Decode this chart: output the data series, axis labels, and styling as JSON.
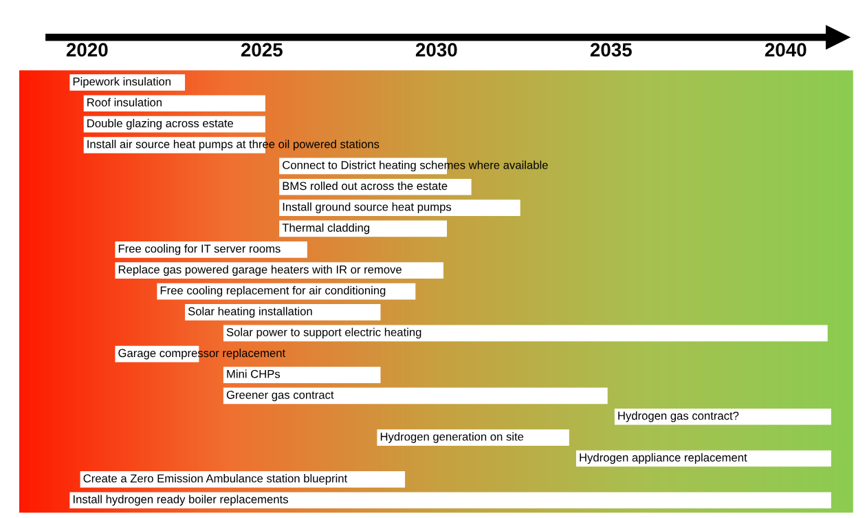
{
  "chart_data": {
    "type": "bar",
    "orientation": "horizontal",
    "color": "#ffffff",
    "tick_labels": "x",
    "grid": false,
    "xlim": [
      2018.05,
      2041.93
    ],
    "xticks": [
      2020,
      2025,
      2030,
      2035,
      2040
    ],
    "categories": [
      "Pipework insulation",
      "Roof insulation",
      "Double glazing across estate",
      "Install air source heat pumps at three oil powered stations",
      "Connect to District heating schemes where available",
      "BMS rolled out across the estate",
      "Install ground source heat pumps",
      "Thermal cladding",
      "Free cooling for IT server rooms",
      "Replace gas powered garage heaters with IR or remove",
      "Free cooling replacement for air conditioning",
      "Solar heating installation",
      "Solar power to support electric heating",
      "Garage compressor replacement",
      "Mini CHPs",
      "Greener gas contract",
      "Hydrogen gas contract?",
      "Hydrogen generation on site",
      "Hydrogen appliance replacement",
      "Create a Zero Emission Ambulance station blueprint",
      "Install hydrogen ready boiler replacements"
    ],
    "base": [
      2019.5,
      2019.9,
      2019.9,
      2019.9,
      2025.5,
      2025.5,
      2025.5,
      2025.5,
      2020.8,
      2020.8,
      2022.0,
      2022.8,
      2023.9,
      2020.8,
      2023.9,
      2023.9,
      2035.1,
      2028.3,
      2034.0,
      2019.8,
      2019.5
    ],
    "values": [
      3.3,
      5.2,
      5.2,
      5.2,
      4.8,
      5.5,
      6.9,
      4.8,
      5.5,
      9.4,
      7.4,
      5.6,
      17.3,
      2.4,
      4.5,
      11.0,
      6.2,
      5.5,
      7.3,
      9.3,
      21.8
    ]
  }
}
